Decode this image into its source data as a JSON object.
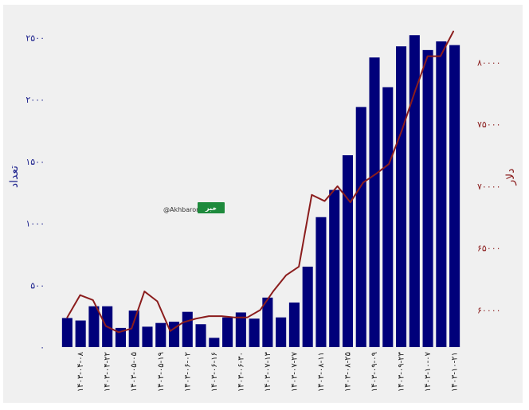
{
  "chart_data": {
    "type": "bar",
    "xlabel": "",
    "ylabel_left": "تعداد",
    "ylabel_right": "دلار",
    "ylim_left": [
      0,
      2650
    ],
    "ylim_right": [
      57000,
      83500
    ],
    "yticks_left": [
      {
        "value": 0,
        "label": "۰"
      },
      {
        "value": 500,
        "label": "۵۰۰"
      },
      {
        "value": 1000,
        "label": "۱۰۰۰"
      },
      {
        "value": 1500,
        "label": "۱۵۰۰"
      },
      {
        "value": 2000,
        "label": "۲۰۰۰"
      },
      {
        "value": 2500,
        "label": "۲۵۰۰"
      }
    ],
    "yticks_right": [
      {
        "value": 60000,
        "label": "۶۰۰۰۰"
      },
      {
        "value": 65000,
        "label": "۶۵۰۰۰"
      },
      {
        "value": 70000,
        "label": "۷۰۰۰۰"
      },
      {
        "value": 75000,
        "label": "۷۵۰۰۰"
      },
      {
        "value": 80000,
        "label": "۸۰۰۰۰"
      }
    ],
    "x_tick_labels": [
      "۱۴۰۳-۰۴-۰۸",
      "۱۴۰۳-۰۴-۲۲",
      "۱۴۰۳-۰۵-۰۵",
      "۱۴۰۳-۰۵-۱۹",
      "۱۴۰۳-۰۶-۰۲",
      "۱۴۰۳-۰۶-۱۶",
      "۱۴۰۳-۰۶-۳۰",
      "۱۴۰۳-۰۷-۱۳",
      "۱۴۰۳-۰۷-۲۷",
      "۱۴۰۳-۰۸-۱۱",
      "۱۴۰۳-۰۸-۲۵",
      "۱۴۰۳-۰۹-۰۹",
      "۱۴۰۳-۰۹-۲۳",
      "۱۴۰۳-۱۰-۰۷",
      "۱۴۰۳-۱۰-۲۱"
    ],
    "series": [
      {
        "kind": "bar",
        "axis": "left",
        "color": "#00007a",
        "values": [
          235,
          215,
          330,
          330,
          155,
          295,
          165,
          195,
          205,
          285,
          185,
          75,
          240,
          280,
          230,
          400,
          240,
          360,
          650,
          1050,
          1270,
          1550,
          1940,
          2340,
          2100,
          2430,
          2520,
          2400,
          2470,
          2440
        ]
      },
      {
        "kind": "line",
        "axis": "right",
        "color": "#8b1d1d",
        "values": [
          59400,
          61200,
          60800,
          58700,
          58200,
          58500,
          61500,
          60700,
          58300,
          59000,
          59300,
          59500,
          59500,
          59400,
          59400,
          60000,
          61500,
          62800,
          63500,
          69300,
          68800,
          70000,
          68700,
          70300,
          71000,
          71800,
          74500,
          77600,
          80500,
          80500,
          82500
        ]
      }
    ]
  },
  "watermark": {
    "handle": "@Akhbaronline",
    "logo_text": "خبر"
  },
  "colors": {
    "background": "#f0f0f0",
    "bars": "#00007a",
    "line": "#8b1d1d",
    "left_axis": "#1a1f8c",
    "right_axis": "#8b1d1d",
    "logo_green": "#1e8a3c"
  }
}
